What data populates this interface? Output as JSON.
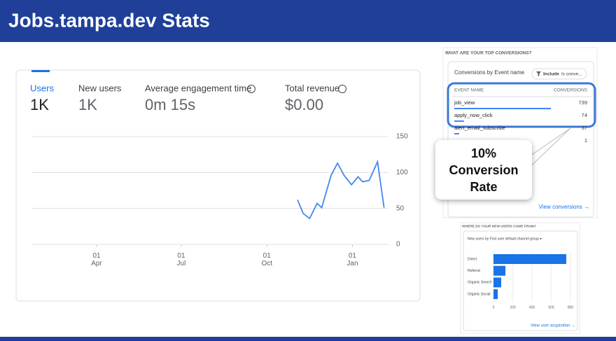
{
  "header": {
    "title": "Jobs.tampa.dev Stats"
  },
  "overview": {
    "metrics": [
      {
        "label": "Users",
        "value": "1K"
      },
      {
        "label": "New users",
        "value": "1K"
      },
      {
        "label": "Average engagement time",
        "value": "0m 15s"
      },
      {
        "label": "Total revenue",
        "value": "$0.00"
      }
    ],
    "chart_data": {
      "type": "line",
      "x": [
        216,
        222,
        229,
        237,
        242,
        252,
        259,
        266,
        274,
        281,
        286,
        293,
        302,
        309
      ],
      "series": [
        {
          "color": "#4285f4",
          "values": [
            62,
            43,
            36,
            57,
            51,
            96,
            113,
            96,
            83,
            94,
            87,
            89,
            115,
            51
          ]
        }
      ],
      "xlim": [
        -70,
        310
      ],
      "ylim": [
        0,
        150
      ],
      "xticks": [
        {
          "value": 0,
          "label": "01\nApr"
        },
        {
          "value": 91,
          "label": "01\nJul"
        },
        {
          "value": 183,
          "label": "01\nOct"
        },
        {
          "value": 275,
          "label": "01\nJan"
        }
      ],
      "yticks": [
        0,
        50,
        100,
        150
      ],
      "grid": true
    }
  },
  "conversions": {
    "heading": "WHAT ARE YOUR TOP CONVERSIONS?",
    "card_title": "Conversions by Event name",
    "filter_label": "Include",
    "filter_value": "Is conve...",
    "columns": [
      "EVENT NAME",
      "CONVERSIONS"
    ],
    "rows": [
      {
        "name": "job_view",
        "value": 739
      },
      {
        "name": "apply_now_click",
        "value": 74
      },
      {
        "name": "alert_email_subscribe",
        "value": 37
      },
      {
        "name": null,
        "value": 1
      }
    ],
    "callout": [
      "10%",
      "Conversion",
      "Rate"
    ],
    "link": "View conversions →"
  },
  "acquisition": {
    "heading": "WHERE DO YOUR NEW USERS COME FROM?",
    "chart_data": {
      "type": "bar",
      "title": "New users by First user default channel group ▾",
      "categories": [
        "Direct",
        "Referral",
        "Organic Search",
        "Organic Social"
      ],
      "values": [
        756,
        124,
        80,
        44
      ],
      "color": "#1a73e8",
      "xlim": [
        0,
        800
      ],
      "xticks": [
        0,
        200,
        400,
        600,
        800
      ]
    },
    "link": "View user acquisition →"
  }
}
